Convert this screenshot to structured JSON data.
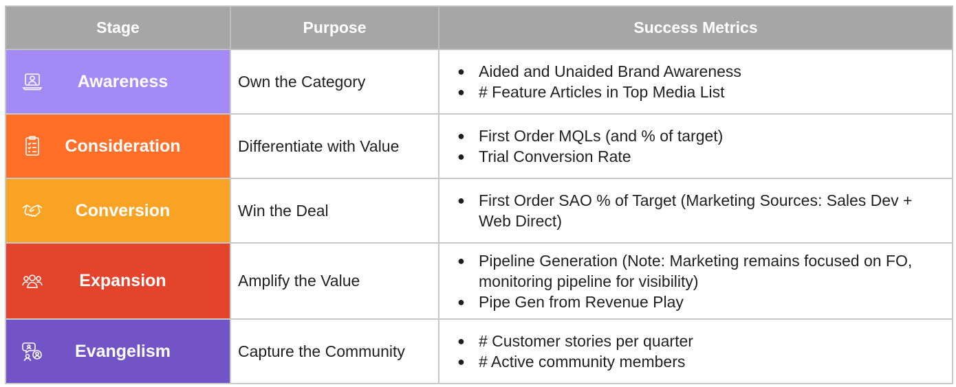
{
  "headers": {
    "stage": "Stage",
    "purpose": "Purpose",
    "metrics": "Success Metrics"
  },
  "rows": [
    {
      "stage": "Awareness",
      "icon": "laptop-user-icon",
      "color": "#a38af6",
      "purpose": "Own the Category",
      "metrics": [
        "Aided and Unaided Brand Awareness",
        "# Feature Articles in Top Media List"
      ]
    },
    {
      "stage": "Consideration",
      "icon": "clipboard-checklist-icon",
      "color": "#ff6f28",
      "purpose": "Differentiate with Value",
      "metrics": [
        "First Order MQLs (and % of target)",
        "Trial Conversion Rate"
      ]
    },
    {
      "stage": "Conversion",
      "icon": "handshake-icon",
      "color": "#f9a325",
      "purpose": "Win the Deal",
      "metrics": [
        "First Order SAO % of Target (Marketing Sources: Sales Dev + Web Direct)"
      ]
    },
    {
      "stage": "Expansion",
      "icon": "user-group-icon",
      "color": "#e3442b",
      "purpose": "Amplify the Value",
      "metrics": [
        "Pipeline Generation (Note: Marketing remains focused on FO, monitoring pipeline for visibility)",
        "Pipe Gen from Revenue Play"
      ]
    },
    {
      "stage": "Evangelism",
      "icon": "community-speech-icon",
      "color": "#7254c6",
      "purpose": "Capture the Community",
      "metrics": [
        "# Customer stories per quarter",
        "# Active community members"
      ]
    }
  ]
}
